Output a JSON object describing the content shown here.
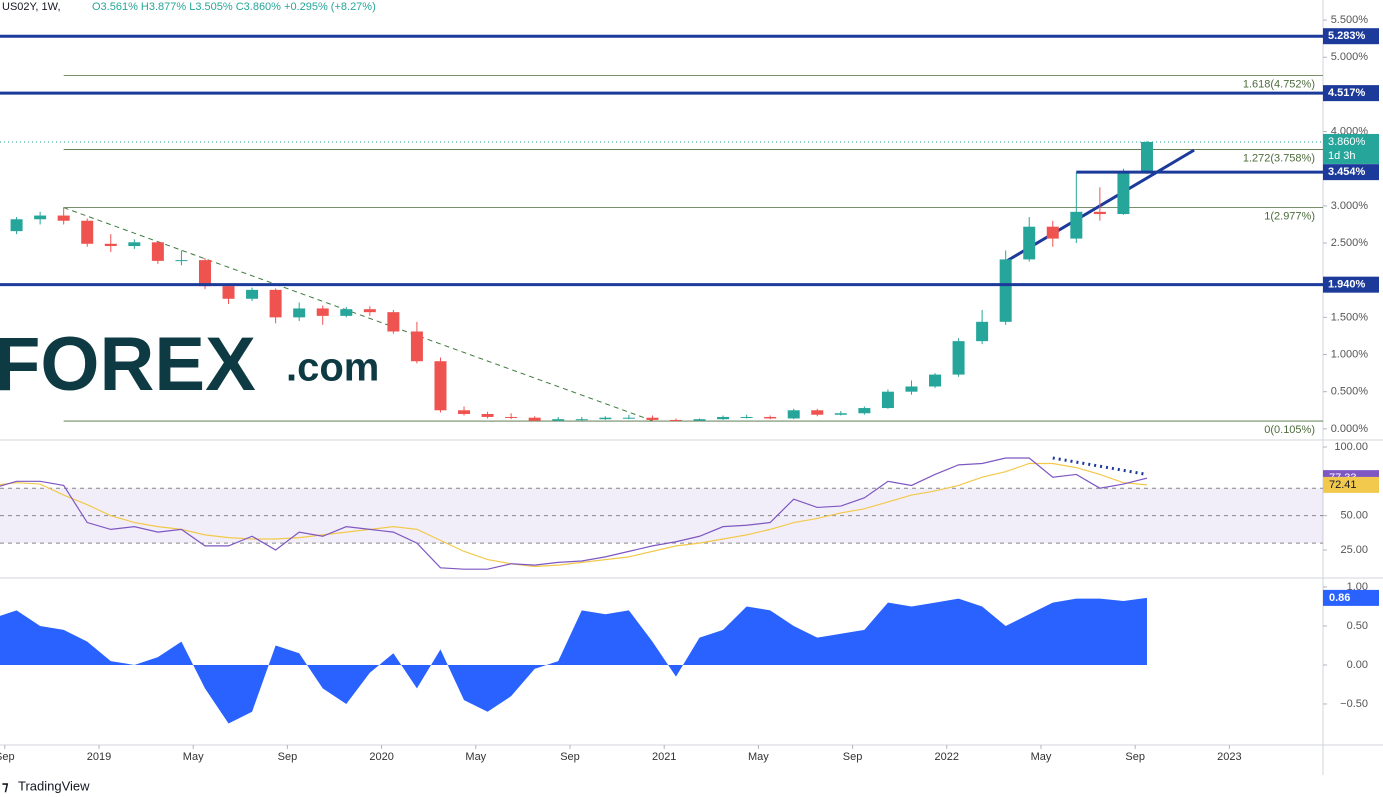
{
  "header": {
    "symbol": "US02Y, 1W,",
    "quote": "O3.561% H3.877% L3.505% C3.860% +0.295% (+8.27%)",
    "unit": "pct"
  },
  "logo": {
    "main": "FOREX",
    "suffix": ".com"
  },
  "footer": "TradingView",
  "chart_data": [
    {
      "type": "candlestick",
      "x": [
        "2018-08",
        "2018-09",
        "2018-10",
        "2018-11",
        "2018-12",
        "2019-01",
        "2019-02",
        "2019-03",
        "2019-04",
        "2019-05",
        "2019-06",
        "2019-07",
        "2019-08",
        "2019-09",
        "2019-10",
        "2019-11",
        "2019-12",
        "2020-01",
        "2020-02",
        "2020-03",
        "2020-04",
        "2020-05",
        "2020-06",
        "2020-07",
        "2020-08",
        "2020-09",
        "2020-10",
        "2020-11",
        "2020-12",
        "2021-01",
        "2021-02",
        "2021-03",
        "2021-04",
        "2021-05",
        "2021-06",
        "2021-07",
        "2021-08",
        "2021-09",
        "2021-10",
        "2021-11",
        "2021-12",
        "2022-01",
        "2022-02",
        "2022-03",
        "2022-04",
        "2022-05",
        "2022-06",
        "2022-07",
        "2022-08",
        "2022-09"
      ],
      "open": [
        2.63,
        2.66,
        2.82,
        2.87,
        2.8,
        2.49,
        2.46,
        2.51,
        2.26,
        2.27,
        1.92,
        1.75,
        1.87,
        1.5,
        1.62,
        1.52,
        1.61,
        1.57,
        1.31,
        0.91,
        0.25,
        0.2,
        0.16,
        0.15,
        0.11,
        0.13,
        0.13,
        0.15,
        0.15,
        0.12,
        0.11,
        0.13,
        0.16,
        0.16,
        0.14,
        0.25,
        0.19,
        0.21,
        0.28,
        0.5,
        0.57,
        0.73,
        1.18,
        1.44,
        2.28,
        2.72,
        2.56,
        2.92,
        2.89,
        3.45
      ],
      "high": [
        2.75,
        2.85,
        2.92,
        2.98,
        2.83,
        2.62,
        2.55,
        2.52,
        2.4,
        2.3,
        1.94,
        1.9,
        1.89,
        1.7,
        1.66,
        1.64,
        1.65,
        1.6,
        1.44,
        0.96,
        0.3,
        0.23,
        0.21,
        0.17,
        0.16,
        0.16,
        0.17,
        0.19,
        0.18,
        0.14,
        0.14,
        0.18,
        0.19,
        0.18,
        0.27,
        0.27,
        0.24,
        0.3,
        0.53,
        0.65,
        0.75,
        1.22,
        1.6,
        2.4,
        2.85,
        2.8,
        3.45,
        3.25,
        3.5,
        3.877
      ],
      "low": [
        2.6,
        2.62,
        2.75,
        2.75,
        2.45,
        2.38,
        2.42,
        2.22,
        2.2,
        1.88,
        1.68,
        1.72,
        1.42,
        1.45,
        1.4,
        1.5,
        1.52,
        1.28,
        0.88,
        0.22,
        0.18,
        0.14,
        0.13,
        0.1,
        0.1,
        0.11,
        0.12,
        0.13,
        0.11,
        0.1,
        0.1,
        0.12,
        0.14,
        0.13,
        0.13,
        0.17,
        0.18,
        0.19,
        0.27,
        0.46,
        0.55,
        0.7,
        1.14,
        1.4,
        2.25,
        2.45,
        2.5,
        2.8,
        2.88,
        3.43
      ],
      "close": [
        2.66,
        2.82,
        2.87,
        2.8,
        2.49,
        2.46,
        2.51,
        2.26,
        2.27,
        1.92,
        1.75,
        1.87,
        1.5,
        1.62,
        1.52,
        1.61,
        1.57,
        1.31,
        0.91,
        0.25,
        0.2,
        0.16,
        0.15,
        0.11,
        0.13,
        0.13,
        0.15,
        0.15,
        0.12,
        0.11,
        0.13,
        0.16,
        0.16,
        0.14,
        0.25,
        0.19,
        0.21,
        0.28,
        0.5,
        0.57,
        0.73,
        1.18,
        1.44,
        2.28,
        2.72,
        2.56,
        2.92,
        2.89,
        3.45,
        3.86
      ],
      "close_label": "3.860%",
      "countdown": "1d 3h",
      "up_color": "#26a69a",
      "down_color": "#ef5350",
      "ylim": [
        -0.15,
        5.77
      ],
      "yticks": [
        {
          "value": 5.5,
          "label": "5.500%"
        },
        {
          "value": 5,
          "label": "5.000%"
        },
        {
          "value": 4,
          "label": "4.000%"
        },
        {
          "value": 3,
          "label": "3.000%"
        },
        {
          "value": 2.5,
          "label": "2.500%"
        },
        {
          "value": 1.5,
          "label": "1.500%"
        },
        {
          "value": 1,
          "label": "1.000%"
        },
        {
          "value": 0.5,
          "label": "0.500%"
        },
        {
          "value": 0,
          "label": "0.000%"
        }
      ],
      "levels": [
        {
          "value": 5.283,
          "label": "5.283%"
        },
        {
          "value": 4.517,
          "label": "4.517%"
        },
        {
          "value": 3.454,
          "label": "3.454%",
          "from": "2022-06"
        },
        {
          "value": 1.94,
          "label": "1.940%"
        }
      ],
      "level_color": "#1b3a9a",
      "fib_from": "2018-11",
      "fib": [
        {
          "value": 4.752,
          "label": "1.618(4.752%)"
        },
        {
          "value": 3.758,
          "label": "1.272(3.758%)"
        },
        {
          "value": 2.977,
          "label": "1(2.977%)"
        },
        {
          "value": 0.105,
          "label": "0(0.105%)"
        }
      ],
      "trendlines": [
        {
          "from": [
            "2018-11",
            2.977
          ],
          "to": [
            "2020-12",
            0.11
          ],
          "dashed": true,
          "color": "#3f7a3f"
        },
        {
          "from": [
            "2022-03",
            2.25
          ],
          "to": [
            "2022-11",
            3.75
          ],
          "dashed": false,
          "color": "#1b3a9a"
        }
      ]
    },
    {
      "type": "line",
      "series": [
        {
          "name": "RSI",
          "color": "#7e57c2",
          "values": [
            70,
            75,
            75,
            72,
            45,
            40,
            42,
            38,
            40,
            28,
            28,
            35,
            25,
            38,
            35,
            42,
            40,
            38,
            30,
            12,
            11,
            11,
            15,
            14,
            16,
            17,
            20,
            24,
            28,
            31,
            35,
            42,
            43,
            45,
            62,
            56,
            57,
            63,
            75,
            72,
            80,
            87,
            88,
            92,
            92,
            78,
            80,
            70,
            73,
            77.33
          ]
        },
        {
          "name": "MA",
          "color": "#f2c94c",
          "values": [
            72,
            74,
            73,
            65,
            58,
            50,
            45,
            42,
            40,
            36,
            34,
            33,
            33,
            34,
            36,
            38,
            40,
            42,
            40,
            32,
            24,
            18,
            15,
            13,
            14,
            16,
            18,
            20,
            24,
            28,
            30,
            33,
            36,
            40,
            45,
            48,
            52,
            55,
            60,
            65,
            68,
            72,
            78,
            82,
            88,
            88,
            85,
            80,
            74,
            72.41
          ]
        }
      ],
      "ylim": [
        4.6,
        105.1
      ],
      "yticks": [
        {
          "value": 100,
          "label": "100.00"
        },
        {
          "value": 50,
          "label": "50.00"
        },
        {
          "value": 25,
          "label": "25.00"
        }
      ],
      "band": [
        30,
        70
      ],
      "levels": [
        70,
        50,
        30
      ],
      "trendlines": [
        {
          "from": [
            "2022-05",
            92
          ],
          "to": [
            "2022-09",
            80
          ],
          "dashed": true,
          "color": "#1b3a9a"
        }
      ]
    },
    {
      "type": "area",
      "color": "#2962ff",
      "values": [
        0.6,
        0.7,
        0.5,
        0.45,
        0.3,
        0.05,
        0.0,
        0.1,
        0.3,
        -0.3,
        -0.75,
        -0.6,
        0.25,
        0.15,
        -0.3,
        -0.5,
        -0.1,
        0.15,
        -0.3,
        0.2,
        -0.45,
        -0.6,
        -0.4,
        -0.05,
        0.05,
        0.7,
        0.65,
        0.7,
        0.3,
        -0.15,
        0.35,
        0.45,
        0.75,
        0.7,
        0.5,
        0.35,
        0.4,
        0.45,
        0.8,
        0.75,
        0.8,
        0.85,
        0.75,
        0.5,
        0.65,
        0.8,
        0.85,
        0.85,
        0.82,
        0.86
      ],
      "ylim": [
        -1.026,
        1.115
      ],
      "yticks": [
        {
          "value": 1,
          "label": "1.00"
        },
        {
          "value": 0.5,
          "label": "0.50"
        },
        {
          "value": 0,
          "label": "0.00"
        },
        {
          "value": -0.5,
          "label": "−0.50"
        }
      ],
      "xticks": [
        {
          "value": "2018-09",
          "label": "Sep"
        },
        {
          "value": "2019-01",
          "label": "2019"
        },
        {
          "value": "2019-05",
          "label": "May"
        },
        {
          "value": "2019-09",
          "label": "Sep"
        },
        {
          "value": "2020-01",
          "label": "2020"
        },
        {
          "value": "2020-05",
          "label": "May"
        },
        {
          "value": "2020-09",
          "label": "Sep"
        },
        {
          "value": "2021-01",
          "label": "2021"
        },
        {
          "value": "2021-05",
          "label": "May"
        },
        {
          "value": "2021-09",
          "label": "Sep"
        },
        {
          "value": "2022-01",
          "label": "2022"
        },
        {
          "value": "2022-05",
          "label": "May"
        },
        {
          "value": "2022-09",
          "label": "Sep"
        },
        {
          "value": "2023-01",
          "label": "2023"
        }
      ]
    }
  ]
}
